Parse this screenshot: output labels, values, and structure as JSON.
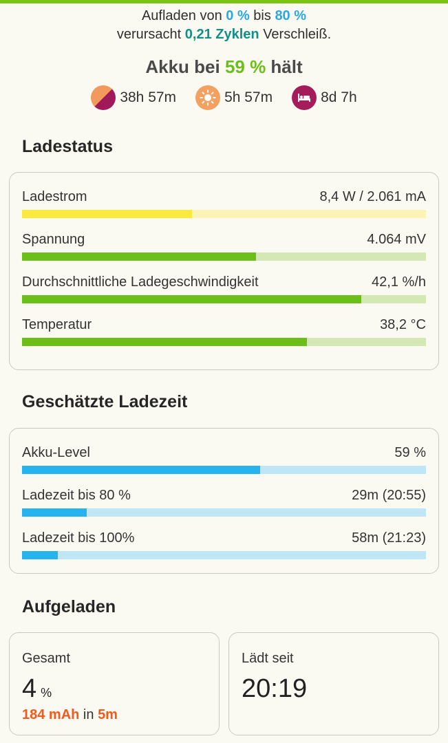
{
  "summary": {
    "line1_prefix": "Aufladen von ",
    "from_pct": "0 %",
    "line1_mid": " bis ",
    "to_pct": "80 %",
    "line2_prefix": "verursacht ",
    "cycles": "0,21 Zyklen",
    "line2_suffix": " Verschleiß."
  },
  "akku": {
    "prefix": "Akku bei ",
    "percent": "59 %",
    "suffix": " hält"
  },
  "times": [
    {
      "icon": "screen-mixed-icon",
      "value": "38h 57m"
    },
    {
      "icon": "sun-icon",
      "value": "5h 57m"
    },
    {
      "icon": "bed-icon",
      "value": "8d 7h"
    }
  ],
  "ladestatus": {
    "title": "Ladestatus",
    "rows": [
      {
        "label": "Ladestrom",
        "value": "8,4 W / 2.061 mA",
        "fraction": 0.42,
        "fill_color": "#fce93e",
        "track_color": "#fbf4b4"
      },
      {
        "label": "Spannung",
        "value": "4.064 mV",
        "fraction": 0.58,
        "fill_color": "#6cbf18",
        "track_color": "#d3e8b5"
      },
      {
        "label": "Durchschnittliche Ladegeschwindigkeit",
        "value": "42,1 %/h",
        "fraction": 0.84,
        "fill_color": "#6cbf18",
        "track_color": "#d3e8b5"
      },
      {
        "label": "Temperatur",
        "value": "38,2 °C",
        "fraction": 0.705,
        "fill_color": "#6cbf18",
        "track_color": "#d3e8b5"
      }
    ]
  },
  "ladezeit": {
    "title": "Geschätzte Ladezeit",
    "rows": [
      {
        "label": "Akku-Level",
        "value": "59 %",
        "fraction": 0.59,
        "fill_color": "#27b3ee",
        "track_color": "#bfe6f4"
      },
      {
        "label": "Ladezeit bis 80 %",
        "value": "29m (20:55)",
        "fraction": 0.16,
        "fill_color": "#27b3ee",
        "track_color": "#bfe6f4"
      },
      {
        "label": "Ladezeit bis 100%",
        "value": "58m (21:23)",
        "fraction": 0.088,
        "fill_color": "#27b3ee",
        "track_color": "#bfe6f4"
      }
    ]
  },
  "aufgeladen": {
    "title": "Aufgeladen",
    "gesamt": {
      "label": "Gesamt",
      "value": "4",
      "unit": "%",
      "mah": "184 mAh",
      "in_word": " in ",
      "duration": "5m"
    },
    "seit": {
      "label": "Lädt seit",
      "value": "20:19"
    }
  }
}
